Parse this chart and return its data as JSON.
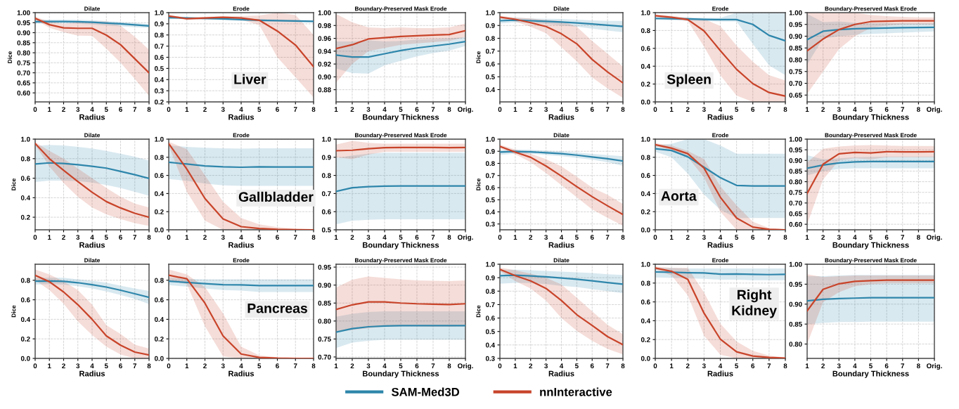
{
  "chart_data": [
    {
      "type": "line",
      "title": "Dilate",
      "xlabel": "Radius",
      "ylabel": "Dice",
      "x": [
        0,
        1,
        2,
        3,
        4,
        5,
        6,
        7,
        8
      ],
      "xlim": [
        0,
        8
      ],
      "xticks": [
        0,
        1,
        2,
        3,
        4,
        5,
        6,
        7,
        8
      ],
      "ylim": [
        0.555,
        1.0
      ],
      "yticks": [
        {
          "value": 0.6,
          "label": "0.60"
        },
        {
          "value": 0.65,
          "label": "0.65"
        },
        {
          "value": 0.7,
          "label": "0.70"
        },
        {
          "value": 0.75,
          "label": "0.75"
        },
        {
          "value": 0.8,
          "label": "0.80"
        },
        {
          "value": 0.85,
          "label": "0.85"
        },
        {
          "value": 0.9,
          "label": "0.90"
        },
        {
          "value": 0.95,
          "label": "0.95"
        },
        {
          "value": 1,
          "label": "1.00"
        }
      ],
      "grid": true,
      "legend": "bottom",
      "series": [
        {
          "name": "SAM-Med3D",
          "color": "#2e86ab",
          "values": [
            0.955,
            0.956,
            0.956,
            0.955,
            0.952,
            0.948,
            0.944,
            0.939,
            0.934
          ],
          "lower": [
            0.945,
            0.947,
            0.947,
            0.945,
            0.941,
            0.936,
            0.932,
            0.927,
            0.925
          ],
          "upper": [
            0.965,
            0.965,
            0.965,
            0.964,
            0.962,
            0.958,
            0.954,
            0.949,
            0.943
          ]
        },
        {
          "name": "nnInteractive",
          "color": "#c8442a",
          "values": [
            0.972,
            0.94,
            0.924,
            0.922,
            0.922,
            0.888,
            0.84,
            0.77,
            0.7
          ],
          "lower": [
            0.965,
            0.925,
            0.903,
            0.885,
            0.884,
            0.82,
            0.75,
            0.67,
            0.585
          ],
          "upper": [
            0.98,
            0.955,
            0.945,
            0.952,
            0.957,
            0.955,
            0.935,
            0.88,
            0.815
          ]
        }
      ]
    },
    {
      "type": "line",
      "title": "Erode",
      "xlabel": "Radius",
      "x": [
        0,
        1,
        2,
        3,
        4,
        5,
        6,
        7,
        8
      ],
      "xlim": [
        0,
        8
      ],
      "xticks": [
        0,
        1,
        2,
        3,
        4,
        5,
        6,
        7,
        8
      ],
      "ylim": [
        0.2,
        1.0
      ],
      "yticks": [
        0.2,
        0.3,
        0.4,
        0.5,
        0.6,
        0.7,
        0.8,
        0.9,
        {
          "value": 1,
          "label": "1.0"
        }
      ],
      "grid": true,
      "legend": "bottom",
      "annotations": [
        "Liver"
      ],
      "series": [
        {
          "name": "SAM-Med3D",
          "color": "#2e86ab",
          "values": [
            0.955,
            0.952,
            0.948,
            0.944,
            0.938,
            0.932,
            0.928,
            0.925,
            0.922
          ],
          "lower": [
            0.945,
            0.942,
            0.938,
            0.934,
            0.928,
            0.922,
            0.918,
            0.915,
            0.912
          ],
          "upper": [
            0.965,
            0.962,
            0.958,
            0.954,
            0.948,
            0.942,
            0.938,
            0.935,
            0.932
          ]
        },
        {
          "name": "nnInteractive",
          "color": "#c8442a",
          "values": [
            0.97,
            0.945,
            0.952,
            0.958,
            0.952,
            0.932,
            0.835,
            0.71,
            0.515
          ],
          "lower": [
            0.96,
            0.935,
            0.94,
            0.945,
            0.935,
            0.89,
            0.6,
            0.42,
            0.24
          ],
          "upper": [
            0.98,
            0.955,
            0.962,
            0.97,
            0.968,
            0.975,
            1.0,
            0.98,
            0.8
          ]
        }
      ]
    },
    {
      "type": "line",
      "title": "Boundary-Preserved Mask Erode",
      "xlabel": "Boundary Thickness",
      "categories": [
        "1",
        "2",
        "3",
        "4",
        "5",
        "6",
        "7",
        "8",
        "Orig."
      ],
      "ylim": [
        0.861,
        1.0
      ],
      "yticks": [
        {
          "value": 0.88,
          "label": "0.88"
        },
        {
          "value": 0.9,
          "label": "0.90"
        },
        {
          "value": 0.92,
          "label": "0.92"
        },
        {
          "value": 0.94,
          "label": "0.94"
        },
        {
          "value": 0.96,
          "label": "0.96"
        },
        {
          "value": 0.98,
          "label": "0.98"
        },
        {
          "value": 1,
          "label": "1.00"
        }
      ],
      "grid": true,
      "legend": "bottom",
      "series": [
        {
          "name": "SAM-Med3D",
          "color": "#2e86ab",
          "values": [
            0.934,
            0.931,
            0.931,
            0.936,
            0.941,
            0.945,
            0.948,
            0.951,
            0.955
          ],
          "lower": [
            0.913,
            0.906,
            0.905,
            0.918,
            0.925,
            0.932,
            0.937,
            0.941,
            0.948
          ],
          "upper": [
            0.955,
            0.955,
            0.957,
            0.955,
            0.956,
            0.958,
            0.959,
            0.96,
            0.962
          ]
        },
        {
          "name": "nnInteractive",
          "color": "#c8442a",
          "values": [
            0.944,
            0.95,
            0.959,
            0.961,
            0.963,
            0.964,
            0.965,
            0.966,
            0.972
          ],
          "lower": [
            0.891,
            0.92,
            0.94,
            0.945,
            0.95,
            0.952,
            0.954,
            0.956,
            0.962
          ],
          "upper": [
            0.998,
            0.985,
            0.977,
            0.976,
            0.977,
            0.976,
            0.976,
            0.977,
            0.983
          ]
        }
      ]
    },
    {
      "type": "line",
      "title": "Dilate",
      "xlabel": "Radius",
      "ylabel": "Dice",
      "x": [
        0,
        1,
        2,
        3,
        4,
        5,
        6,
        7,
        8
      ],
      "xlim": [
        0,
        8
      ],
      "xticks": [
        0,
        1,
        2,
        3,
        4,
        5,
        6,
        7,
        8
      ],
      "ylim": [
        0.304,
        1.0
      ],
      "yticks": [
        0.4,
        0.5,
        0.6,
        0.7,
        0.8,
        0.9,
        {
          "value": 1,
          "label": "1.0"
        }
      ],
      "grid": true,
      "legend": "bottom",
      "series": [
        {
          "name": "SAM-Med3D",
          "color": "#2e86ab",
          "values": [
            0.937,
            0.942,
            0.937,
            0.932,
            0.927,
            0.92,
            0.912,
            0.902,
            0.892
          ],
          "lower": [
            0.915,
            0.925,
            0.92,
            0.912,
            0.9,
            0.89,
            0.875,
            0.86,
            0.848
          ],
          "upper": [
            0.955,
            0.96,
            0.955,
            0.952,
            0.95,
            0.945,
            0.94,
            0.935,
            0.935
          ]
        },
        {
          "name": "nnInteractive",
          "color": "#c8442a",
          "values": [
            0.965,
            0.948,
            0.922,
            0.892,
            0.835,
            0.757,
            0.635,
            0.538,
            0.452
          ],
          "lower": [
            0.955,
            0.93,
            0.89,
            0.84,
            0.73,
            0.62,
            0.495,
            0.41,
            0.335
          ],
          "upper": [
            0.975,
            0.962,
            0.955,
            0.942,
            0.935,
            0.89,
            0.78,
            0.68,
            0.58
          ]
        }
      ]
    },
    {
      "type": "line",
      "title": "Erode",
      "xlabel": "Radius",
      "x": [
        0,
        1,
        2,
        3,
        4,
        5,
        6,
        7,
        8
      ],
      "xlim": [
        0,
        8
      ],
      "xticks": [
        0,
        1,
        2,
        3,
        4,
        5,
        6,
        7,
        8
      ],
      "ylim": [
        0.0,
        1.0
      ],
      "yticks": [
        {
          "value": 0,
          "label": "0.0"
        },
        0.2,
        0.4,
        0.6,
        0.8,
        {
          "value": 1,
          "label": "1.0"
        }
      ],
      "grid": true,
      "legend": "bottom",
      "annotations": [
        "Spleen"
      ],
      "series": [
        {
          "name": "SAM-Med3D",
          "color": "#2e86ab",
          "values": [
            0.935,
            0.932,
            0.93,
            0.925,
            0.922,
            0.922,
            0.868,
            0.745,
            0.685
          ],
          "lower": [
            0.92,
            0.915,
            0.91,
            0.905,
            0.9,
            0.9,
            0.65,
            0.41,
            0.3
          ],
          "upper": [
            0.95,
            0.95,
            0.945,
            0.94,
            0.94,
            1.0,
            1.0,
            1.0,
            1.0
          ]
        },
        {
          "name": "nnInteractive",
          "color": "#c8442a",
          "values": [
            0.965,
            0.948,
            0.922,
            0.795,
            0.575,
            0.365,
            0.205,
            0.105,
            0.065
          ],
          "lower": [
            0.955,
            0.93,
            0.905,
            0.62,
            0.3,
            0.07,
            0.0,
            0.0,
            0.0
          ],
          "upper": [
            0.98,
            0.965,
            0.94,
            0.93,
            0.85,
            0.63,
            0.45,
            0.3,
            0.24
          ]
        }
      ]
    },
    {
      "type": "line",
      "title": "Boundary-Preserved Mask Erode",
      "xlabel": "Boundary Thickness",
      "categories": [
        "1",
        "2",
        "3",
        "4",
        "5",
        "6",
        "7",
        "8",
        "Orig."
      ],
      "ylim": [
        0.621,
        1.0
      ],
      "yticks": [
        {
          "value": 0.65,
          "label": "0.65"
        },
        {
          "value": 0.7,
          "label": "0.70"
        },
        {
          "value": 0.75,
          "label": "0.75"
        },
        {
          "value": 0.8,
          "label": "0.80"
        },
        {
          "value": 0.85,
          "label": "0.85"
        },
        {
          "value": 0.9,
          "label": "0.90"
        },
        {
          "value": 0.95,
          "label": "0.95"
        },
        {
          "value": 1,
          "label": "1.00"
        }
      ],
      "grid": true,
      "legend": "bottom",
      "series": [
        {
          "name": "SAM-Med3D",
          "color": "#2e86ab",
          "values": [
            0.885,
            0.921,
            0.928,
            0.932,
            0.933,
            0.935,
            0.936,
            0.937,
            0.938
          ],
          "lower": [
            0.78,
            0.89,
            0.9,
            0.905,
            0.91,
            0.912,
            0.915,
            0.918,
            0.92
          ],
          "upper": [
            0.995,
            0.96,
            0.963,
            0.957,
            0.955,
            0.955,
            0.955,
            0.955,
            0.956
          ]
        },
        {
          "name": "nnInteractive",
          "color": "#c8442a",
          "values": [
            0.838,
            0.888,
            0.928,
            0.95,
            0.962,
            0.964,
            0.965,
            0.965,
            0.965
          ],
          "lower": [
            0.655,
            0.75,
            0.845,
            0.9,
            0.935,
            0.945,
            0.95,
            0.95,
            0.95
          ],
          "upper": [
            1.0,
            1.0,
            1.0,
            1.0,
            0.99,
            0.985,
            0.982,
            0.98,
            0.98
          ]
        }
      ]
    },
    {
      "type": "line",
      "title": "Dilate",
      "xlabel": "Radius",
      "ylabel": "Dice",
      "x": [
        0,
        1,
        2,
        3,
        4,
        5,
        6,
        7,
        8
      ],
      "xlim": [
        0,
        8
      ],
      "xticks": [
        0,
        1,
        2,
        3,
        4,
        5,
        6,
        7,
        8
      ],
      "ylim": [
        0.071,
        1.0
      ],
      "yticks": [
        0.2,
        0.4,
        0.6,
        0.8,
        {
          "value": 1,
          "label": "1.0"
        }
      ],
      "grid": true,
      "legend": "bottom",
      "series": [
        {
          "name": "SAM-Med3D",
          "color": "#2e86ab",
          "values": [
            0.745,
            0.757,
            0.75,
            0.738,
            0.722,
            0.703,
            0.67,
            0.635,
            0.598
          ],
          "lower": [
            0.56,
            0.575,
            0.575,
            0.57,
            0.555,
            0.53,
            0.5,
            0.46,
            0.42
          ],
          "upper": [
            0.93,
            0.94,
            0.935,
            0.92,
            0.905,
            0.88,
            0.85,
            0.82,
            0.78
          ]
        },
        {
          "name": "nnInteractive",
          "color": "#c8442a",
          "values": [
            0.955,
            0.8,
            0.68,
            0.565,
            0.455,
            0.36,
            0.295,
            0.24,
            0.2
          ],
          "lower": [
            0.94,
            0.72,
            0.55,
            0.41,
            0.3,
            0.23,
            0.18,
            0.14,
            0.11
          ],
          "upper": [
            0.97,
            0.88,
            0.8,
            0.7,
            0.6,
            0.5,
            0.41,
            0.34,
            0.3
          ]
        }
      ]
    },
    {
      "type": "line",
      "title": "Erode",
      "xlabel": "Radius",
      "x": [
        0,
        1,
        2,
        3,
        4,
        5,
        6,
        7,
        8
      ],
      "xlim": [
        0,
        8
      ],
      "xticks": [
        0,
        1,
        2,
        3,
        4,
        5,
        6,
        7,
        8
      ],
      "ylim": [
        0.0,
        1.0
      ],
      "yticks": [
        {
          "value": 0,
          "label": "0.0"
        },
        0.2,
        0.4,
        0.6,
        0.8,
        {
          "value": 1,
          "label": "1.0"
        }
      ],
      "grid": true,
      "legend": "bottom",
      "annotations": [
        "Gallbladder"
      ],
      "series": [
        {
          "name": "SAM-Med3D",
          "color": "#2e86ab",
          "values": [
            0.745,
            0.725,
            0.705,
            0.695,
            0.69,
            0.695,
            0.693,
            0.693,
            0.693
          ],
          "lower": [
            0.56,
            0.54,
            0.51,
            0.49,
            0.485,
            0.485,
            0.485,
            0.485,
            0.485
          ],
          "upper": [
            0.93,
            0.915,
            0.905,
            0.9,
            0.895,
            0.9,
            0.9,
            0.9,
            0.9
          ]
        },
        {
          "name": "nnInteractive",
          "color": "#c8442a",
          "values": [
            0.95,
            0.67,
            0.345,
            0.12,
            0.035,
            0.015,
            0.005,
            0.002,
            0.0
          ],
          "lower": [
            0.93,
            0.42,
            0.1,
            0.0,
            0.0,
            0.0,
            0.0,
            0.0,
            0.0
          ],
          "upper": [
            0.97,
            0.89,
            0.6,
            0.31,
            0.13,
            0.06,
            0.03,
            0.01,
            0.005
          ]
        }
      ]
    },
    {
      "type": "line",
      "title": "Boundary-Preserved Mask Erode",
      "xlabel": "Boundary Thickness",
      "categories": [
        "1",
        "2",
        "3",
        "4",
        "5",
        "6",
        "7",
        "8",
        "Orig."
      ],
      "ylim": [
        0.5,
        1.0
      ],
      "yticks": [
        0.5,
        0.6,
        0.7,
        0.8,
        0.9,
        {
          "value": 1,
          "label": "1.0"
        }
      ],
      "grid": true,
      "legend": "bottom",
      "series": [
        {
          "name": "SAM-Med3D",
          "color": "#2e86ab",
          "values": [
            0.712,
            0.732,
            0.738,
            0.741,
            0.742,
            0.742,
            0.742,
            0.742,
            0.742
          ],
          "lower": [
            0.53,
            0.55,
            0.555,
            0.558,
            0.558,
            0.558,
            0.558,
            0.558,
            0.558
          ],
          "upper": [
            0.895,
            0.91,
            0.92,
            0.925,
            0.925,
            0.925,
            0.925,
            0.925,
            0.925
          ]
        },
        {
          "name": "nnInteractive",
          "color": "#c8442a",
          "values": [
            0.936,
            0.939,
            0.947,
            0.953,
            0.954,
            0.954,
            0.954,
            0.953,
            0.954
          ],
          "lower": [
            0.9,
            0.89,
            0.915,
            0.93,
            0.93,
            0.93,
            0.93,
            0.93,
            0.93
          ],
          "upper": [
            0.97,
            0.99,
            0.98,
            0.975,
            0.975,
            0.975,
            0.975,
            0.975,
            0.975
          ]
        }
      ]
    },
    {
      "type": "line",
      "title": "Dilate",
      "xlabel": "Radius",
      "ylabel": "Dice",
      "x": [
        0,
        1,
        2,
        3,
        4,
        5,
        6,
        7,
        8
      ],
      "xlim": [
        0,
        8
      ],
      "xticks": [
        0,
        1,
        2,
        3,
        4,
        5,
        6,
        7,
        8
      ],
      "ylim": [
        0.252,
        1.0
      ],
      "yticks": [
        0.3,
        0.4,
        0.5,
        0.6,
        0.7,
        0.8,
        0.9,
        {
          "value": 1,
          "label": "1.0"
        }
      ],
      "grid": true,
      "legend": "bottom",
      "series": [
        {
          "name": "SAM-Med3D",
          "color": "#2e86ab",
          "values": [
            0.893,
            0.898,
            0.895,
            0.888,
            0.88,
            0.868,
            0.853,
            0.838,
            0.82
          ],
          "lower": [
            0.87,
            0.88,
            0.88,
            0.87,
            0.86,
            0.845,
            0.83,
            0.81,
            0.78
          ],
          "upper": [
            0.91,
            0.915,
            0.912,
            0.905,
            0.9,
            0.89,
            0.878,
            0.868,
            0.86
          ]
        },
        {
          "name": "nnInteractive",
          "color": "#c8442a",
          "values": [
            0.94,
            0.893,
            0.85,
            0.778,
            0.695,
            0.608,
            0.525,
            0.45,
            0.378
          ],
          "lower": [
            0.925,
            0.875,
            0.81,
            0.72,
            0.62,
            0.52,
            0.42,
            0.35,
            0.285
          ],
          "upper": [
            0.955,
            0.915,
            0.88,
            0.835,
            0.775,
            0.69,
            0.6,
            0.54,
            0.465
          ]
        }
      ]
    },
    {
      "type": "line",
      "title": "Erode",
      "xlabel": "Radius",
      "x": [
        0,
        1,
        2,
        3,
        4,
        5,
        6,
        7,
        8
      ],
      "xlim": [
        0,
        8
      ],
      "xticks": [
        0,
        1,
        2,
        3,
        4,
        5,
        6,
        7,
        8
      ],
      "ylim": [
        0.0,
        1.0
      ],
      "yticks": [
        {
          "value": 0,
          "label": "0.0"
        },
        0.2,
        0.4,
        0.6,
        0.8,
        {
          "value": 1,
          "label": "1.0"
        }
      ],
      "grid": true,
      "legend": "bottom",
      "annotations": [
        "Aorta"
      ],
      "series": [
        {
          "name": "SAM-Med3D",
          "color": "#2e86ab",
          "values": [
            0.895,
            0.875,
            0.805,
            0.69,
            0.575,
            0.49,
            0.483,
            0.483,
            0.483
          ],
          "lower": [
            0.86,
            0.8,
            0.62,
            0.39,
            0.22,
            0.13,
            0.13,
            0.13,
            0.13
          ],
          "upper": [
            0.93,
            0.95,
            1.0,
            1.0,
            0.93,
            0.84,
            0.84,
            0.84,
            0.84
          ]
        },
        {
          "name": "nnInteractive",
          "color": "#c8442a",
          "values": [
            0.94,
            0.9,
            0.84,
            0.68,
            0.36,
            0.13,
            0.03,
            0.005,
            0.0
          ],
          "lower": [
            0.925,
            0.875,
            0.8,
            0.58,
            0.2,
            0.0,
            0.0,
            0.0,
            0.0
          ],
          "upper": [
            0.955,
            0.93,
            0.87,
            0.78,
            0.48,
            0.27,
            0.09,
            0.02,
            0.005
          ]
        }
      ]
    },
    {
      "type": "line",
      "title": "Boundary-Preserved Mask Erode",
      "xlabel": "Boundary Thickness",
      "categories": [
        "1",
        "2",
        "3",
        "4",
        "5",
        "6",
        "7",
        "8",
        "Orig."
      ],
      "ylim": [
        0.574,
        1.0
      ],
      "yticks": [
        {
          "value": 0.6,
          "label": "0.60"
        },
        {
          "value": 0.65,
          "label": "0.65"
        },
        {
          "value": 0.7,
          "label": "0.70"
        },
        {
          "value": 0.75,
          "label": "0.75"
        },
        {
          "value": 0.8,
          "label": "0.80"
        },
        {
          "value": 0.85,
          "label": "0.85"
        },
        {
          "value": 0.9,
          "label": "0.90"
        },
        {
          "value": 0.95,
          "label": "0.95"
        },
        {
          "value": 1,
          "label": "1.00"
        }
      ],
      "grid": true,
      "legend": "bottom",
      "series": [
        {
          "name": "SAM-Med3D",
          "color": "#2e86ab",
          "values": [
            0.863,
            0.878,
            0.888,
            0.893,
            0.895,
            0.895,
            0.895,
            0.895,
            0.895
          ],
          "lower": [
            0.83,
            0.85,
            0.86,
            0.863,
            0.863,
            0.863,
            0.863,
            0.863,
            0.863
          ],
          "upper": [
            0.925,
            0.905,
            0.91,
            0.915,
            0.917,
            0.918,
            0.918,
            0.918,
            0.918
          ]
        },
        {
          "name": "nnInteractive",
          "color": "#c8442a",
          "values": [
            0.745,
            0.882,
            0.931,
            0.938,
            0.935,
            0.941,
            0.94,
            0.94,
            0.941
          ],
          "lower": [
            0.6,
            0.81,
            0.9,
            0.91,
            0.905,
            0.915,
            0.915,
            0.915,
            0.915
          ],
          "upper": [
            0.89,
            0.955,
            0.965,
            0.97,
            0.972,
            0.97,
            0.968,
            0.968,
            0.968
          ]
        }
      ]
    },
    {
      "type": "line",
      "title": "Dilate",
      "xlabel": "Radius",
      "ylabel": "Dice",
      "x": [
        0,
        1,
        2,
        3,
        4,
        5,
        6,
        7,
        8
      ],
      "xlim": [
        0,
        8
      ],
      "xticks": [
        0,
        1,
        2,
        3,
        4,
        5,
        6,
        7,
        8
      ],
      "ylim": [
        0.0,
        0.964
      ],
      "yticks": [
        {
          "value": 0,
          "label": "0.0"
        },
        0.2,
        0.4,
        0.6,
        0.8
      ],
      "grid": true,
      "legend": "bottom",
      "series": [
        {
          "name": "SAM-Med3D",
          "color": "#2e86ab",
          "values": [
            0.79,
            0.792,
            0.788,
            0.775,
            0.755,
            0.73,
            0.698,
            0.662,
            0.625
          ],
          "lower": [
            0.755,
            0.76,
            0.755,
            0.74,
            0.715,
            0.685,
            0.65,
            0.61,
            0.555
          ],
          "upper": [
            0.82,
            0.828,
            0.825,
            0.81,
            0.795,
            0.775,
            0.745,
            0.715,
            0.69
          ]
        },
        {
          "name": "nnInteractive",
          "color": "#c8442a",
          "values": [
            0.85,
            0.785,
            0.68,
            0.55,
            0.4,
            0.23,
            0.135,
            0.065,
            0.035
          ],
          "lower": [
            0.8,
            0.7,
            0.56,
            0.38,
            0.24,
            0.12,
            0.04,
            0.0,
            0.0
          ],
          "upper": [
            0.91,
            0.86,
            0.79,
            0.7,
            0.55,
            0.34,
            0.25,
            0.14,
            0.1
          ]
        }
      ]
    },
    {
      "type": "line",
      "title": "Erode",
      "xlabel": "Radius",
      "x": [
        0,
        1,
        2,
        3,
        4,
        5,
        6,
        7,
        8
      ],
      "xlim": [
        0,
        8
      ],
      "xticks": [
        0,
        1,
        2,
        3,
        4,
        5,
        6,
        7,
        8
      ],
      "ylim": [
        0.0,
        0.964
      ],
      "yticks": [
        {
          "value": 0,
          "label": "0.0"
        },
        0.2,
        0.4,
        0.6,
        0.8
      ],
      "grid": true,
      "legend": "bottom",
      "annotations": [
        "Pancreas"
      ],
      "series": [
        {
          "name": "SAM-Med3D",
          "color": "#2e86ab",
          "values": [
            0.79,
            0.778,
            0.765,
            0.755,
            0.752,
            0.745,
            0.745,
            0.745,
            0.745
          ],
          "lower": [
            0.75,
            0.735,
            0.715,
            0.7,
            0.695,
            0.68,
            0.68,
            0.68,
            0.68
          ],
          "upper": [
            0.83,
            0.815,
            0.81,
            0.81,
            0.81,
            0.81,
            0.81,
            0.81,
            0.81
          ]
        },
        {
          "name": "nnInteractive",
          "color": "#c8442a",
          "values": [
            0.852,
            0.815,
            0.565,
            0.23,
            0.045,
            0.01,
            0.002,
            0.0,
            0.0
          ],
          "lower": [
            0.8,
            0.76,
            0.33,
            0.02,
            0.0,
            0.0,
            0.0,
            0.0,
            0.0
          ],
          "upper": [
            0.91,
            0.86,
            0.73,
            0.46,
            0.12,
            0.03,
            0.01,
            0.0,
            0.0
          ]
        }
      ]
    },
    {
      "type": "line",
      "title": "Boundary-Preserved Mask Erode",
      "xlabel": "Boundary Thickness",
      "categories": [
        "1",
        "2",
        "3",
        "4",
        "5",
        "6",
        "7",
        "8",
        "Orig."
      ],
      "ylim": [
        0.696,
        0.958
      ],
      "yticks": [
        {
          "value": 0.7,
          "label": "0.70"
        },
        {
          "value": 0.75,
          "label": "0.75"
        },
        {
          "value": 0.8,
          "label": "0.80"
        },
        {
          "value": 0.85,
          "label": "0.85"
        },
        {
          "value": 0.9,
          "label": "0.90"
        },
        {
          "value": 0.95,
          "label": "0.95"
        }
      ],
      "grid": true,
      "legend": "bottom",
      "series": [
        {
          "name": "SAM-Med3D",
          "color": "#2e86ab",
          "values": [
            0.769,
            0.779,
            0.784,
            0.786,
            0.787,
            0.787,
            0.787,
            0.787,
            0.787
          ],
          "lower": [
            0.725,
            0.74,
            0.745,
            0.748,
            0.748,
            0.748,
            0.748,
            0.748,
            0.748
          ],
          "upper": [
            0.812,
            0.82,
            0.825,
            0.827,
            0.827,
            0.827,
            0.827,
            0.827,
            0.827
          ]
        },
        {
          "name": "nnInteractive",
          "color": "#c8442a",
          "values": [
            0.832,
            0.845,
            0.853,
            0.853,
            0.85,
            0.848,
            0.847,
            0.846,
            0.848
          ],
          "lower": [
            0.77,
            0.775,
            0.78,
            0.785,
            0.785,
            0.785,
            0.784,
            0.784,
            0.785
          ],
          "upper": [
            0.893,
            0.915,
            0.924,
            0.92,
            0.916,
            0.913,
            0.912,
            0.911,
            0.913
          ]
        }
      ]
    },
    {
      "type": "line",
      "title": "Dilate",
      "xlabel": "Radius",
      "ylabel": "Dice",
      "x": [
        0,
        1,
        2,
        3,
        4,
        5,
        6,
        7,
        8
      ],
      "xlim": [
        0,
        8
      ],
      "xticks": [
        0,
        1,
        2,
        3,
        4,
        5,
        6,
        7,
        8
      ],
      "ylim": [
        0.3,
        1.0
      ],
      "yticks": [
        0.3,
        0.4,
        0.5,
        0.6,
        0.7,
        0.8,
        0.9,
        {
          "value": 1,
          "label": "1.0"
        }
      ],
      "grid": true,
      "legend": "bottom",
      "series": [
        {
          "name": "SAM-Med3D",
          "color": "#2e86ab",
          "values": [
            0.915,
            0.918,
            0.913,
            0.907,
            0.898,
            0.888,
            0.877,
            0.864,
            0.852
          ],
          "lower": [
            0.855,
            0.862,
            0.86,
            0.853,
            0.84,
            0.83,
            0.815,
            0.8,
            0.785
          ],
          "upper": [
            0.96,
            0.96,
            0.955,
            0.95,
            0.945,
            0.94,
            0.935,
            0.925,
            0.92
          ]
        },
        {
          "name": "nnInteractive",
          "color": "#c8442a",
          "values": [
            0.962,
            0.915,
            0.876,
            0.82,
            0.73,
            0.625,
            0.545,
            0.462,
            0.402
          ],
          "lower": [
            0.95,
            0.875,
            0.82,
            0.73,
            0.6,
            0.505,
            0.43,
            0.37,
            0.33
          ],
          "upper": [
            0.975,
            0.955,
            0.93,
            0.9,
            0.85,
            0.75,
            0.65,
            0.55,
            0.48
          ]
        }
      ]
    },
    {
      "type": "line",
      "title": "Erode",
      "xlabel": "Radius",
      "x": [
        0,
        1,
        2,
        3,
        4,
        5,
        6,
        7,
        8
      ],
      "xlim": [
        0,
        8
      ],
      "xticks": [
        0,
        1,
        2,
        3,
        4,
        5,
        6,
        7,
        8
      ],
      "ylim": [
        0.0,
        1.0
      ],
      "yticks": [
        {
          "value": 0,
          "label": "0.0"
        },
        0.2,
        0.4,
        0.6,
        0.8,
        {
          "value": 1,
          "label": "1.0"
        }
      ],
      "grid": true,
      "legend": "bottom",
      "annotations": [
        "Right\nKidney"
      ],
      "series": [
        {
          "name": "SAM-Med3D",
          "color": "#2e86ab",
          "values": [
            0.918,
            0.915,
            0.91,
            0.907,
            0.895,
            0.897,
            0.893,
            0.89,
            0.893
          ],
          "lower": [
            0.86,
            0.855,
            0.85,
            0.845,
            0.835,
            0.835,
            0.83,
            0.83,
            0.83
          ],
          "upper": [
            0.96,
            0.96,
            0.955,
            0.955,
            0.955,
            0.955,
            0.955,
            0.955,
            0.955
          ]
        },
        {
          "name": "nnInteractive",
          "color": "#c8442a",
          "values": [
            0.96,
            0.925,
            0.84,
            0.48,
            0.205,
            0.07,
            0.025,
            0.01,
            0.002
          ],
          "lower": [
            0.945,
            0.88,
            0.67,
            0.24,
            0.04,
            0.0,
            0.0,
            0.0,
            0.0
          ],
          "upper": [
            0.975,
            0.96,
            0.96,
            0.7,
            0.37,
            0.18,
            0.08,
            0.03,
            0.01
          ]
        }
      ]
    },
    {
      "type": "line",
      "title": "Boundary-Preserved Mask Erode",
      "xlabel": "Boundary Thickness",
      "categories": [
        "1",
        "2",
        "3",
        "4",
        "5",
        "6",
        "7",
        "8",
        "Orig."
      ],
      "ylim": [
        0.764,
        1.0
      ],
      "yticks": [
        {
          "value": 0.8,
          "label": "0.80"
        },
        {
          "value": 0.85,
          "label": "0.85"
        },
        {
          "value": 0.9,
          "label": "0.90"
        },
        {
          "value": 0.95,
          "label": "0.95"
        },
        {
          "value": 1,
          "label": "1.00"
        }
      ],
      "grid": true,
      "legend": "bottom",
      "series": [
        {
          "name": "SAM-Med3D",
          "color": "#2e86ab",
          "values": [
            0.908,
            0.912,
            0.914,
            0.915,
            0.916,
            0.916,
            0.916,
            0.916,
            0.916
          ],
          "lower": [
            0.85,
            0.853,
            0.855,
            0.855,
            0.856,
            0.856,
            0.856,
            0.856,
            0.856
          ],
          "upper": [
            0.97,
            0.97,
            0.972,
            0.973,
            0.973,
            0.973,
            0.973,
            0.973,
            0.973
          ]
        },
        {
          "name": "nnInteractive",
          "color": "#c8442a",
          "values": [
            0.883,
            0.937,
            0.951,
            0.957,
            0.959,
            0.96,
            0.96,
            0.96,
            0.96
          ],
          "lower": [
            0.8,
            0.905,
            0.93,
            0.945,
            0.95,
            0.952,
            0.952,
            0.952,
            0.952
          ],
          "upper": [
            0.975,
            0.968,
            0.97,
            0.972,
            0.972,
            0.972,
            0.972,
            0.972,
            0.972
          ]
        }
      ]
    }
  ]
}
